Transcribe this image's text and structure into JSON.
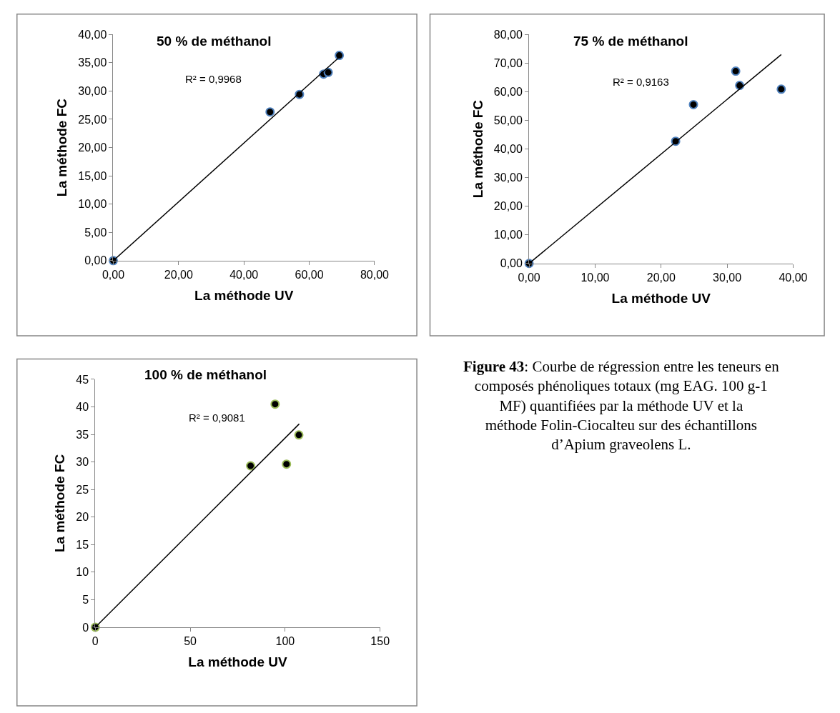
{
  "chart_data": [
    {
      "type": "scatter",
      "title": "50 % de méthanol",
      "xlabel": "La méthode UV",
      "ylabel": "La méthode FC",
      "xlim": [
        0,
        80
      ],
      "ylim": [
        0,
        40
      ],
      "xticks": [
        {
          "value": 0,
          "label": "0,00"
        },
        {
          "value": 20,
          "label": "20,00"
        },
        {
          "value": 40,
          "label": "40,00"
        },
        {
          "value": 60,
          "label": "60,00"
        },
        {
          "value": 80,
          "label": "80,00"
        }
      ],
      "yticks": [
        {
          "value": 0,
          "label": "0,00"
        },
        {
          "value": 5,
          "label": "5,00"
        },
        {
          "value": 10,
          "label": "10,00"
        },
        {
          "value": 15,
          "label": "15,00"
        },
        {
          "value": 20,
          "label": "20,00"
        },
        {
          "value": 25,
          "label": "25,00"
        },
        {
          "value": 30,
          "label": "30,00"
        },
        {
          "value": 35,
          "label": "35,00"
        },
        {
          "value": 40,
          "label": "40,00"
        }
      ],
      "grid": false,
      "annotations": [
        "R² = 0,9968"
      ],
      "series": [
        {
          "type": "scatter",
          "marker": "circle",
          "color": "#000000",
          "x": [
            0,
            48.0,
            57.0,
            64.4,
            65.8,
            69.2
          ],
          "values": [
            0,
            26.3,
            29.4,
            33.0,
            33.3,
            36.3
          ]
        },
        {
          "type": "line",
          "marker": "none",
          "color": "#000000",
          "x": [
            0,
            69.2
          ],
          "values": [
            0,
            36.0
          ]
        }
      ]
    },
    {
      "type": "scatter",
      "title": "75 % de méthanol",
      "xlabel": "La méthode UV",
      "ylabel": "La méthode FC",
      "xlim": [
        0,
        40
      ],
      "ylim": [
        0,
        80
      ],
      "xticks": [
        {
          "value": 0,
          "label": "0,00"
        },
        {
          "value": 10,
          "label": "10,00"
        },
        {
          "value": 20,
          "label": "20,00"
        },
        {
          "value": 30,
          "label": "30,00"
        },
        {
          "value": 40,
          "label": "40,00"
        }
      ],
      "yticks": [
        {
          "value": 0,
          "label": "0,00"
        },
        {
          "value": 10,
          "label": "10,00"
        },
        {
          "value": 20,
          "label": "20,00"
        },
        {
          "value": 30,
          "label": "30,00"
        },
        {
          "value": 40,
          "label": "40,00"
        },
        {
          "value": 50,
          "label": "50,00"
        },
        {
          "value": 60,
          "label": "60,00"
        },
        {
          "value": 70,
          "label": "70,00"
        },
        {
          "value": 80,
          "label": "80,00"
        }
      ],
      "grid": false,
      "annotations": [
        "R² = 0,9163"
      ],
      "series": [
        {
          "type": "scatter",
          "marker": "circle",
          "color": "#000000",
          "x": [
            0,
            22.2,
            24.9,
            31.3,
            31.9,
            38.2
          ],
          "values": [
            0,
            42.7,
            55.5,
            67.2,
            62.2,
            60.9
          ]
        },
        {
          "type": "line",
          "marker": "none",
          "color": "#000000",
          "x": [
            0,
            38.2
          ],
          "values": [
            0,
            73.0
          ]
        }
      ]
    },
    {
      "type": "scatter",
      "title": "100 % de méthanol",
      "xlabel": "La méthode UV",
      "ylabel": "La méthode FC",
      "xlim": [
        0,
        150
      ],
      "ylim": [
        0,
        45
      ],
      "xticks": [
        0,
        50,
        100,
        150
      ],
      "yticks": [
        0,
        5,
        10,
        15,
        20,
        25,
        30,
        35,
        40,
        45
      ],
      "grid": false,
      "annotations": [
        "R² = 0,9081"
      ],
      "series": [
        {
          "type": "scatter",
          "marker": "circle",
          "color": "#000000",
          "x": [
            0,
            81.8,
            94.7,
            100.7,
            107.2
          ],
          "values": [
            0,
            29.3,
            40.5,
            29.6,
            34.9
          ]
        },
        {
          "type": "line",
          "marker": "none",
          "color": "#000000",
          "x": [
            0,
            107.4
          ],
          "values": [
            0,
            36.9
          ]
        }
      ]
    },
    {
      "type": "other",
      "annotations": [
        "Figure 43: Courbe de régression entre les teneurs en composés phénoliques totaux (mg EAG. 100 g-1 MF) quantifiées par la méthode UV et la méthode Folin-Ciocalteu sur des échantillons d’Apium graveolens L."
      ]
    }
  ]
}
